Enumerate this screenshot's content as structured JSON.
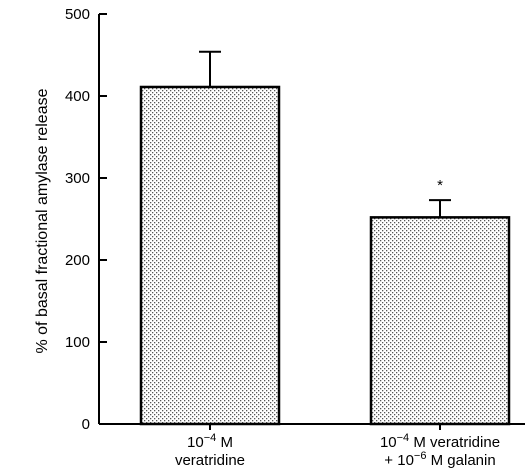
{
  "chart_data": {
    "type": "bar",
    "title": "",
    "xlabel": "",
    "ylabel": "% of basal fractional amylase release",
    "ylim": [
      0,
      500
    ],
    "yticks": [
      0,
      100,
      200,
      300,
      400,
      500
    ],
    "grid": false,
    "categories": [
      {
        "line1_base": "10",
        "line1_exp": "−4",
        "line1_rest": " M",
        "line2_base": "veratridine",
        "line2_exp": "",
        "line2_rest": ""
      },
      {
        "line1_base": "10",
        "line1_exp": "−4",
        "line1_rest": " M veratridine",
        "line2_base": "+ 10",
        "line2_exp": "−6",
        "line2_rest": " M galanin"
      }
    ],
    "series": [
      {
        "values": [
          411,
          252
        ],
        "errors": [
          43,
          21
        ]
      }
    ],
    "annotations": [
      "",
      "*"
    ],
    "bar_fill": "stippled grey",
    "colors": {
      "bar_edge": "#000000",
      "bar_dots": "#555555"
    }
  }
}
